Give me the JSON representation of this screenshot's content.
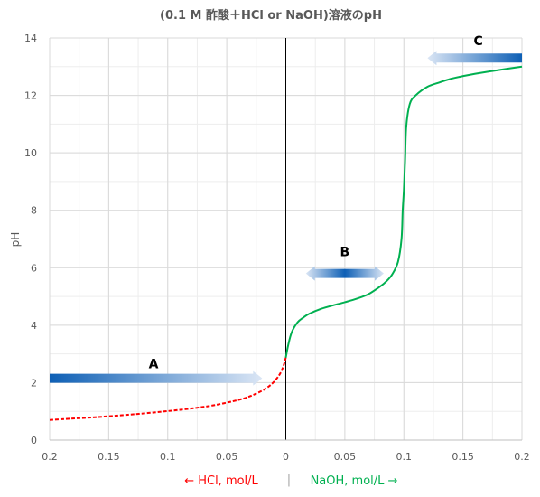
{
  "chart_data": {
    "type": "line",
    "title": "(0.1 M 酢酸＋HCl or NaOH)溶液のpH",
    "ylabel": "pH",
    "ylim": [
      0,
      14
    ],
    "yticks": [
      0,
      2,
      4,
      6,
      8,
      10,
      12,
      14
    ],
    "xlim": [
      -0.2,
      0.2
    ],
    "xticks": [
      -0.2,
      -0.15,
      -0.1,
      -0.05,
      0,
      0.05,
      0.1,
      0.15,
      0.2
    ],
    "xtick_labels": [
      "0.2",
      "0.15",
      "0.1",
      "0.05",
      "0",
      "0.05",
      "0.1",
      "0.15",
      "0.2"
    ],
    "xlabel_left": "← HCl, mol/L",
    "xlabel_separator": "|",
    "xlabel_right": "NaOH, mol/L →",
    "grid": true,
    "series": [
      {
        "color": "#ff0000",
        "dash": true,
        "x": [
          -0.2,
          -0.18,
          -0.16,
          -0.14,
          -0.12,
          -0.1,
          -0.08,
          -0.06,
          -0.04,
          -0.03,
          -0.02,
          -0.015,
          -0.01,
          -0.005,
          -0.002,
          0
        ],
        "y": [
          0.7,
          0.75,
          0.8,
          0.86,
          0.93,
          1.01,
          1.1,
          1.22,
          1.4,
          1.53,
          1.72,
          1.85,
          2.03,
          2.3,
          2.58,
          2.87
        ]
      },
      {
        "color": "#00b050",
        "dash": false,
        "x": [
          0,
          0.002,
          0.005,
          0.01,
          0.015,
          0.02,
          0.03,
          0.04,
          0.05,
          0.06,
          0.07,
          0.08,
          0.085,
          0.09,
          0.095,
          0.098,
          0.099,
          0.1,
          0.101,
          0.102,
          0.105,
          0.11,
          0.12,
          0.13,
          0.14,
          0.15,
          0.16,
          0.18,
          0.2
        ],
        "y": [
          2.87,
          3.3,
          3.75,
          4.1,
          4.27,
          4.4,
          4.57,
          4.69,
          4.8,
          4.92,
          5.08,
          5.35,
          5.52,
          5.76,
          6.2,
          7.0,
          8.0,
          8.7,
          9.7,
          10.9,
          11.7,
          12.0,
          12.3,
          12.45,
          12.58,
          12.67,
          12.75,
          12.88,
          13.0
        ]
      }
    ],
    "annotations": [
      {
        "label": "A",
        "direction": "right",
        "x_from": -0.2,
        "x_to": -0.02,
        "y": 2.15,
        "label_x": -0.112,
        "label_y": 2.5
      },
      {
        "label": "B",
        "direction": "both",
        "x_from": 0.017,
        "x_to": 0.083,
        "y": 5.8,
        "label_x": 0.05,
        "label_y": 6.4
      },
      {
        "label": "C",
        "direction": "left",
        "x_from": 0.12,
        "x_to": 0.2,
        "y": 13.3,
        "label_x": 0.163,
        "label_y": 13.75
      }
    ]
  }
}
